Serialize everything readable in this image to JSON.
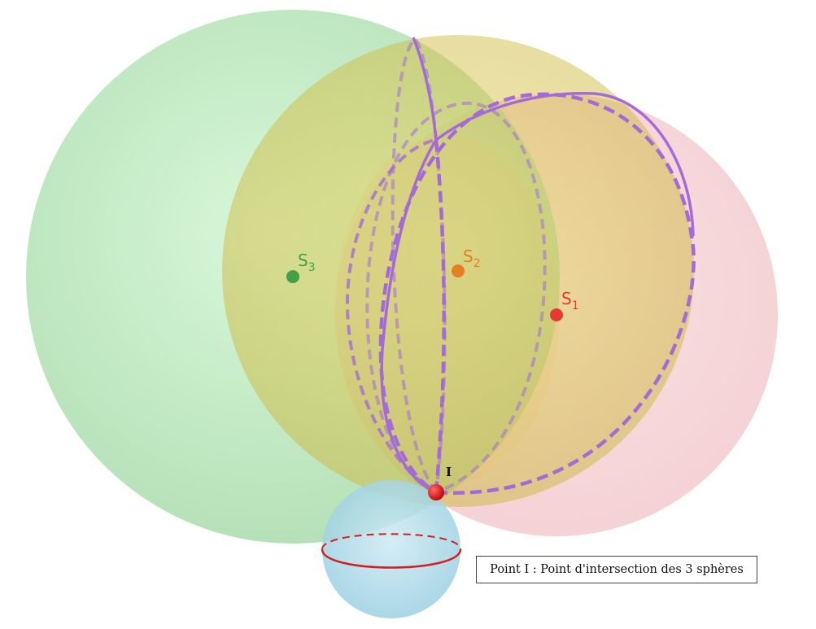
{
  "caption": "Point I : Point d'intersection des 3 sphères",
  "points": {
    "S1": {
      "base": "S",
      "sub": "1",
      "color": "#e53935"
    },
    "S2": {
      "base": "S",
      "sub": "2",
      "color": "#e67e22"
    },
    "S3": {
      "base": "S",
      "sub": "3",
      "color": "#43a047"
    },
    "I": {
      "label": "I",
      "color": "#e00000"
    }
  },
  "colors": {
    "sphere_green": "#a6e3a7",
    "sphere_yellow": "#dccb4d",
    "sphere_pink": "#f1b7bc",
    "sphere_blue": "#9fd4e6",
    "intersection": "#a46bd8",
    "equator": "#d21f1f"
  }
}
